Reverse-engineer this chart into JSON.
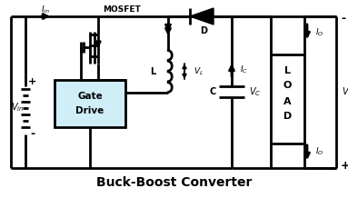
{
  "title": "Buck-Boost Converter",
  "bg": "#ffffff",
  "lc": "#000000",
  "lw": 2.0,
  "fig_w": 3.83,
  "fig_h": 2.18,
  "dpi": 100,
  "gate_drive_fc": "#d0eef8",
  "mosfet_label": "MOSFET",
  "d_label": "D",
  "l_label": "L",
  "vl_label": "$V_L$",
  "c_label": "C",
  "vc_label": "$V_C$",
  "ic_label": "$I_C$",
  "io_label": "$I_O$",
  "vin_label": "$V_{in}$",
  "vo_label": "$V_o$",
  "iin_label": "$I_{in}$",
  "load_letters": [
    "L",
    "O",
    "A",
    "D"
  ],
  "plus": "+",
  "minus": "-"
}
